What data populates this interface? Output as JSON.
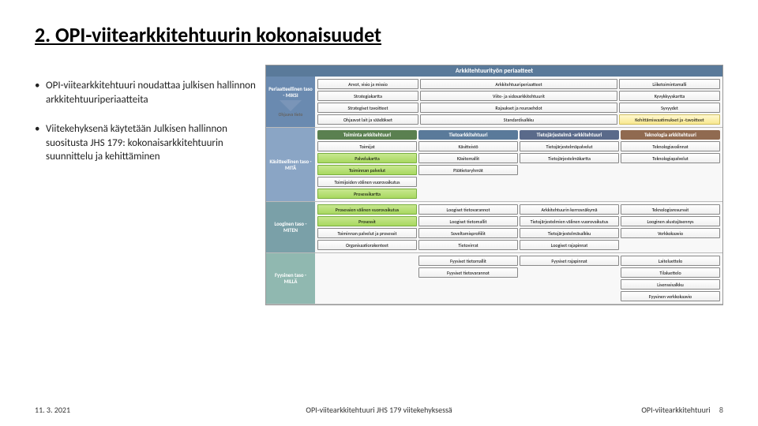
{
  "title": "2. OPI-viitearkkitehtuurin kokonaisuudet",
  "bullets": [
    "OPI-viitearkkitehtuuri noudattaa julkisen hallinnon arkkitehtuuriperiaatteita",
    "Viitekehyksenä käytetään Julkisen hallinnon suositusta JHS 179: kokonaisarkkitehtuurin suunnittelu ja kehittäminen"
  ],
  "caption": "OPI-viitearkkitehtuuri JHS 179 viitekehyksessä",
  "date": "11. 3. 2021",
  "footer_label": "OPI-viitearkkitehtuuri",
  "page": "8",
  "diagram": {
    "header": "Arkkitehtuurityön periaatteet",
    "levels": {
      "prin": "Periaatteellinen taso - MIKSI",
      "con": "Käsitteellinen taso - MITÄ",
      "log": "Looginen taso - MITEN",
      "phy": "Fyysinen taso - MILLÄ",
      "ohj": "Ohjaava tieto"
    },
    "colheads": {
      "toim": "Toiminta arkkitehtuuri",
      "tieto": "Tietoarkkitehtuuri",
      "jarj": "Tietojärjestelmä -arkkitehtuuri",
      "tekn": "Teknologia arkkitehtuuri"
    },
    "colhead_colors": {
      "toim": "#5a8050",
      "tieto": "#5a7a9a",
      "jarj": "#5a6a8a",
      "tekn": "#906a50"
    },
    "prin_rows": [
      [
        "Arvot, visio ja missio",
        "Arkkitehtuuriperiaatteet",
        "",
        "Liiketoimintamalli"
      ],
      [
        "Strategiakartta",
        "Viite- ja sidosarkkitehtuurit",
        "",
        "Kyvykkyyskartta"
      ],
      [
        "Strategiset tavoitteet",
        "Rajaukset ja reunaehdot",
        "",
        "Syvyydet"
      ],
      [
        "Ohjaavat lait ja säädökset",
        "Standardisalkku",
        "",
        "Kehittämisvaatimukset ja -tavoitteet"
      ]
    ],
    "con": {
      "toim": [
        "Toimijat",
        "Palvelukartta",
        "Toiminnan palvelut",
        "Toimijoiden välinen vuorovaikutus",
        "Prosessikartta"
      ],
      "tieto": [
        "Käsitteistö",
        "Käsitemallit",
        "Päätietoryhmät"
      ],
      "jarj": [
        "Tietojärjestelmäpalvelut",
        "Tietojärjestelmäkartta"
      ],
      "tekn": [
        "Teknologiavalinnat",
        "Teknologiapalvelut"
      ]
    },
    "log": {
      "toim": [
        "Prosessien välinen vuorovaikutus",
        "Prosessit",
        "Toiminnan palvelut ja prosessit",
        "Organisaatiorakenteet"
      ],
      "tieto": [
        "Loogiset tietovarannot",
        "Loogiset tietomallit",
        "Soveltamisprofiilit",
        "Tietovirrat"
      ],
      "jarj": [
        "Arkkitehtuurin kerrosnäkymä",
        "Tietojärjestelmien välinen vuorovaikutus",
        "Tietojärjestelmäsalkku",
        "Loogiset rajapinnat"
      ],
      "tekn": [
        "Teknologiaresurssit",
        "Looginen alustajäsennys",
        "Verkkokaavio"
      ]
    },
    "phy": {
      "tieto": [
        "Fyysiset tietomallit",
        "Fyysiset tietovarannot"
      ],
      "jarj": [
        "Fyysiset rajapinnat"
      ],
      "tekn": [
        "Laiteluettelo",
        "Tilaluettelo",
        "Lisenssisalkku",
        "Fyysinen verkkokaavio"
      ]
    },
    "green": [
      "Palvelukartta",
      "Toiminnan palvelut",
      "Prosessikartta",
      "Prosessien välinen vuorovaikutus",
      "Prosessit"
    ],
    "yellow": [
      "Kehittämisvaatimukset ja -tavoitteet"
    ]
  }
}
